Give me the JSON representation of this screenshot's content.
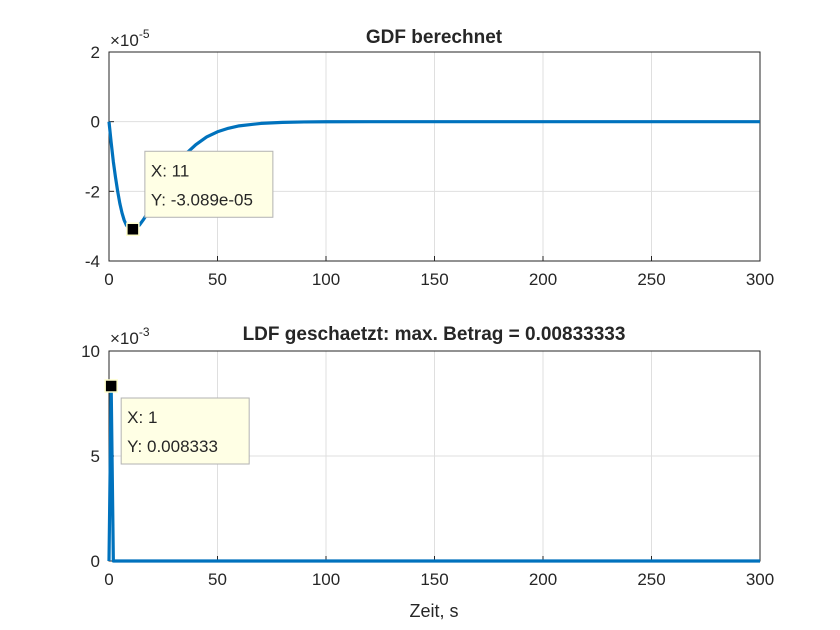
{
  "chart_data": [
    {
      "type": "line",
      "title": "GDF berechnet",
      "xlabel": "",
      "ylabel": "",
      "xlim": [
        0,
        300
      ],
      "ylim": [
        -4e-05,
        2e-05
      ],
      "y_exponent": "-5",
      "x_ticks": [
        "0",
        "50",
        "100",
        "150",
        "200",
        "250",
        "300"
      ],
      "y_ticks": [
        "2",
        "0",
        "-2",
        "-4"
      ],
      "grid": true,
      "series": [
        {
          "color": "#0072BD",
          "x": [
            0,
            1,
            2,
            3,
            4,
            5,
            6,
            7,
            8,
            9,
            10,
            11,
            12,
            14,
            16,
            18,
            20,
            22,
            24,
            26,
            28,
            30,
            33,
            36,
            40,
            45,
            50,
            55,
            60,
            70,
            80,
            90,
            100,
            120,
            150,
            200,
            250,
            300
          ],
          "y": [
            0,
            -6e-06,
            -1.15e-05,
            -1.6e-05,
            -2e-05,
            -2.35e-05,
            -2.62e-05,
            -2.83e-05,
            -2.97e-05,
            -3.05e-05,
            -3.085e-05,
            -3.089e-05,
            -3.07e-05,
            -2.97e-05,
            -2.8e-05,
            -2.6e-05,
            -2.38e-05,
            -2.15e-05,
            -1.93e-05,
            -1.72e-05,
            -1.52e-05,
            -1.34e-05,
            -1.1e-05,
            -8.9e-06,
            -6.6e-06,
            -4.4e-06,
            -2.9e-06,
            -1.9e-06,
            -1.2e-06,
            -5e-07,
            -2e-07,
            -8e-08,
            -3e-08,
            0,
            0,
            0,
            0,
            0
          ]
        }
      ],
      "datatip": {
        "x": 11,
        "y": -3.089e-05,
        "x_label": "X: 11",
        "y_label": "Y: -3.089e-05"
      }
    },
    {
      "type": "line",
      "title": "LDF geschaetzt: max. Betrag = 0.00833333",
      "xlabel": "Zeit, s",
      "ylabel": "",
      "xlim": [
        0,
        300
      ],
      "ylim": [
        0,
        0.01
      ],
      "y_exponent": "-3",
      "x_ticks": [
        "0",
        "50",
        "100",
        "150",
        "200",
        "250",
        "300"
      ],
      "y_ticks": [
        "10",
        "5",
        "0"
      ],
      "grid": true,
      "series": [
        {
          "color": "#0072BD",
          "x": [
            0,
            1,
            2,
            300
          ],
          "y": [
            0,
            0.008333,
            0,
            0
          ]
        }
      ],
      "datatip": {
        "x": 1,
        "y": 0.008333,
        "x_label": "X: 1",
        "y_label": "Y: 0.008333"
      }
    }
  ]
}
